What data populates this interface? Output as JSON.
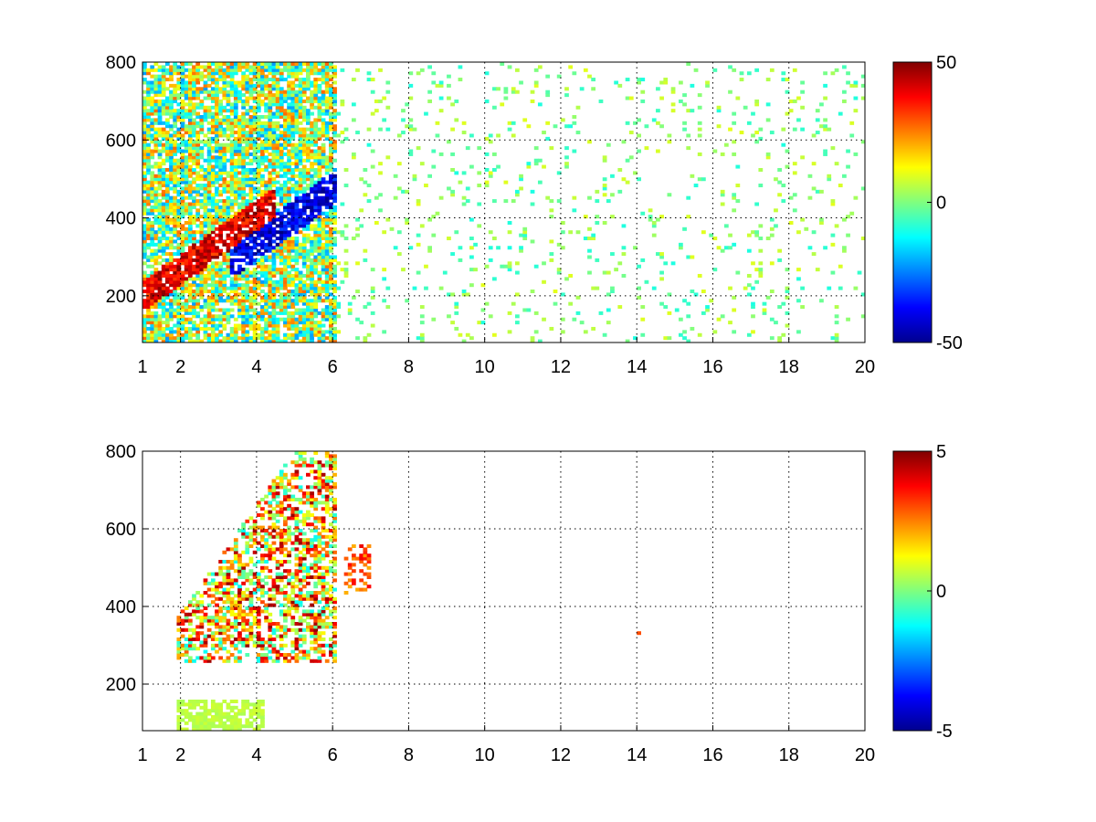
{
  "chart_data": [
    {
      "type": "heatmap",
      "title": "",
      "xlabel": "",
      "ylabel": "",
      "xlim": [
        1,
        20
      ],
      "ylim": [
        80,
        800
      ],
      "xticks": [
        1,
        2,
        4,
        6,
        8,
        10,
        12,
        14,
        16,
        18,
        20
      ],
      "xtick_labels": [
        "1",
        "2",
        "4",
        "6",
        "8",
        "10",
        "12",
        "14",
        "16",
        "18",
        "20"
      ],
      "yticks": [
        200,
        400,
        600,
        800
      ],
      "ytick_labels": [
        "200",
        "400",
        "600",
        "800"
      ],
      "grid": true,
      "colormap": "jet",
      "colorbar": {
        "clim": [
          -50,
          50
        ],
        "ticks": [
          50,
          0,
          -50
        ],
        "tick_labels": [
          "50",
          "0",
          "-50"
        ]
      },
      "features": [
        {
          "description": "positive ridge",
          "x": [
            1.9,
            4.5
          ],
          "y": [
            260,
            400
          ],
          "value": 40
        },
        {
          "description": "negative ridge",
          "x": [
            3.5,
            5.8
          ],
          "y": [
            300,
            450
          ],
          "value": -45
        },
        {
          "description": "dense mixed region",
          "x": [
            1,
            6
          ],
          "y": [
            80,
            800
          ],
          "value_range": [
            -30,
            30
          ]
        },
        {
          "description": "sparse scatter",
          "x": [
            6,
            20
          ],
          "y": [
            80,
            800
          ],
          "value_range": [
            -10,
            10
          ]
        }
      ]
    },
    {
      "type": "heatmap",
      "title": "",
      "xlabel": "",
      "ylabel": "",
      "xlim": [
        1,
        20
      ],
      "ylim": [
        80,
        800
      ],
      "xticks": [
        1,
        2,
        4,
        6,
        8,
        10,
        12,
        14,
        16,
        18,
        20
      ],
      "xtick_labels": [
        "1",
        "2",
        "4",
        "6",
        "8",
        "10",
        "12",
        "14",
        "16",
        "18",
        "20"
      ],
      "yticks": [
        200,
        400,
        600,
        800
      ],
      "ytick_labels": [
        "200",
        "400",
        "600",
        "800"
      ],
      "grid": true,
      "colormap": "jet",
      "colorbar": {
        "clim": [
          -5,
          5
        ],
        "ticks": [
          5,
          0,
          -5
        ],
        "tick_labels": [
          "5",
          "0",
          "-5"
        ]
      },
      "features": [
        {
          "description": "low-level band",
          "x": [
            1.9,
            4.2
          ],
          "y": [
            80,
            160
          ],
          "value": 0.5
        },
        {
          "description": "main positive plume",
          "x": [
            1.9,
            6.0
          ],
          "y": [
            250,
            800
          ],
          "value_range": [
            -2,
            5
          ]
        },
        {
          "description": "isolated patch",
          "x": [
            6.2,
            6.9
          ],
          "y": [
            430,
            560
          ],
          "value": 3
        },
        {
          "description": "isolated point",
          "x": [
            13.9,
            14.0
          ],
          "y": [
            325,
            335
          ],
          "value": 3
        }
      ]
    }
  ]
}
